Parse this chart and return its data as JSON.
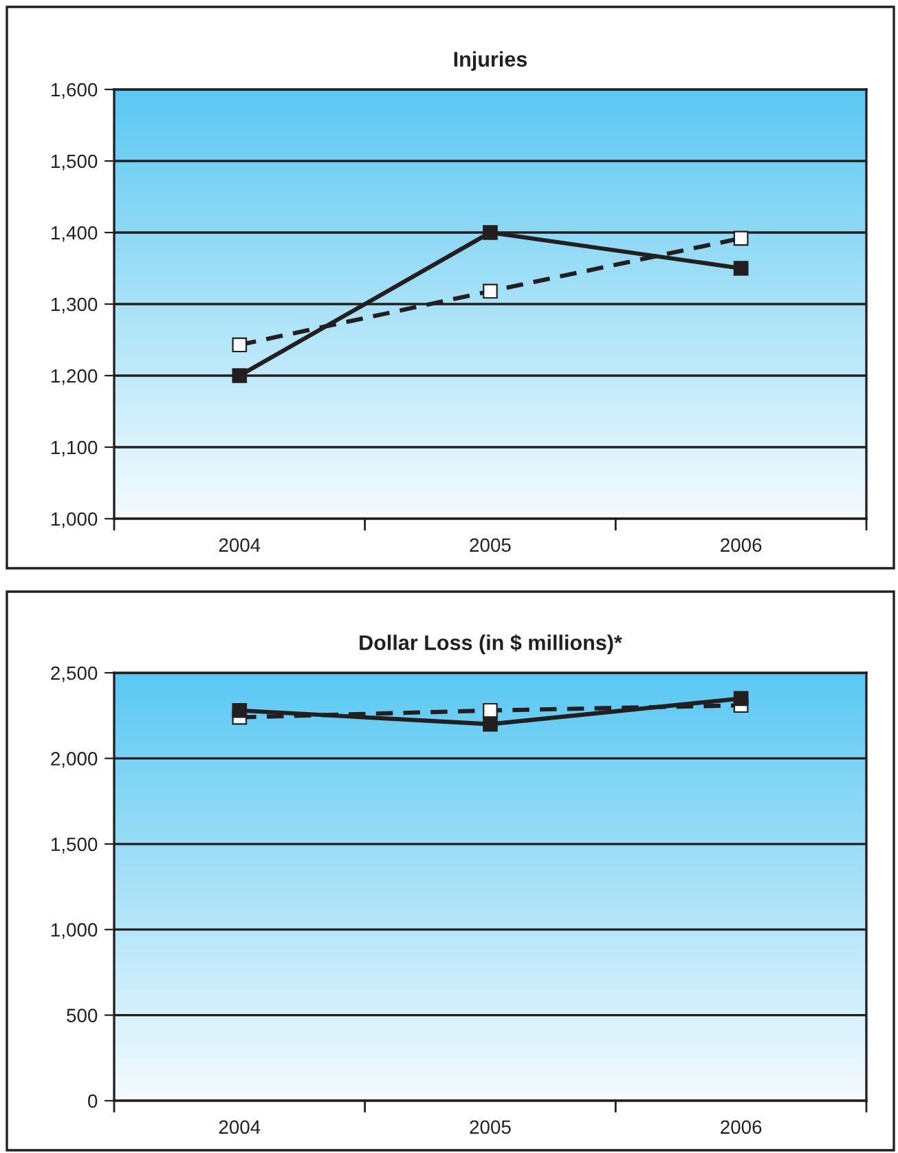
{
  "chart_data": [
    {
      "type": "line",
      "title": "Injuries",
      "categories": [
        "2004",
        "2005",
        "2006"
      ],
      "ylim": [
        1000,
        1600
      ],
      "yticks": [
        {
          "value": 1000,
          "label": "1,000"
        },
        {
          "value": 1100,
          "label": "1,100"
        },
        {
          "value": 1200,
          "label": "1,200"
        },
        {
          "value": 1300,
          "label": "1,300"
        },
        {
          "value": 1400,
          "label": "1,400"
        },
        {
          "value": 1500,
          "label": "1,500"
        },
        {
          "value": 1600,
          "label": "1,600"
        }
      ],
      "grid": "y",
      "marker": "square",
      "series": [
        {
          "color": "#231f20",
          "line_style": "solid",
          "values": [
            1200,
            1400,
            1350
          ]
        },
        {
          "color": "#231f20",
          "line_style": "dashed",
          "values": [
            1243,
            1318,
            1392
          ]
        }
      ]
    },
    {
      "type": "line",
      "title": "Dollar Loss (in $ millions)*",
      "categories": [
        "2004",
        "2005",
        "2006"
      ],
      "ylim": [
        0,
        2500
      ],
      "yticks": [
        0,
        500,
        {
          "value": 1000,
          "label": "1,000"
        },
        {
          "value": 1500,
          "label": "1,500"
        },
        {
          "value": 2000,
          "label": "2,000"
        },
        {
          "value": 2500,
          "label": "2,500"
        }
      ],
      "grid": "y",
      "marker": "square",
      "series": [
        {
          "color": "#231f20",
          "line_style": "solid",
          "values": [
            2280,
            2200,
            2350
          ]
        },
        {
          "color": "#231f20",
          "line_style": "dashed",
          "values": [
            2240,
            2280,
            2310
          ]
        }
      ]
    }
  ]
}
